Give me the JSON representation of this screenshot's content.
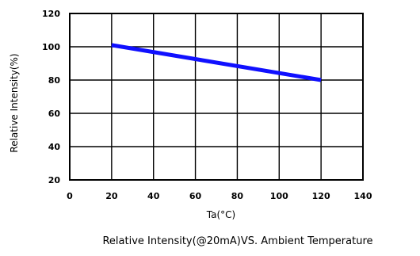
{
  "chart_data": {
    "type": "line",
    "title": "Relative Intensity(@20mA)VS. Ambient Temperature",
    "xlabel": "Ta(°C)",
    "ylabel": "Relative Intensity(%)",
    "xlim": [
      0,
      140
    ],
    "ylim": [
      20,
      120
    ],
    "x_ticks": [
      0,
      20,
      40,
      60,
      80,
      100,
      120,
      140
    ],
    "y_ticks": [
      20,
      40,
      60,
      80,
      100,
      120
    ],
    "grid": true,
    "legend": "none",
    "series": [
      {
        "color": "#1010ff",
        "x": [
          20,
          120
        ],
        "y": [
          101,
          80
        ]
      }
    ]
  }
}
